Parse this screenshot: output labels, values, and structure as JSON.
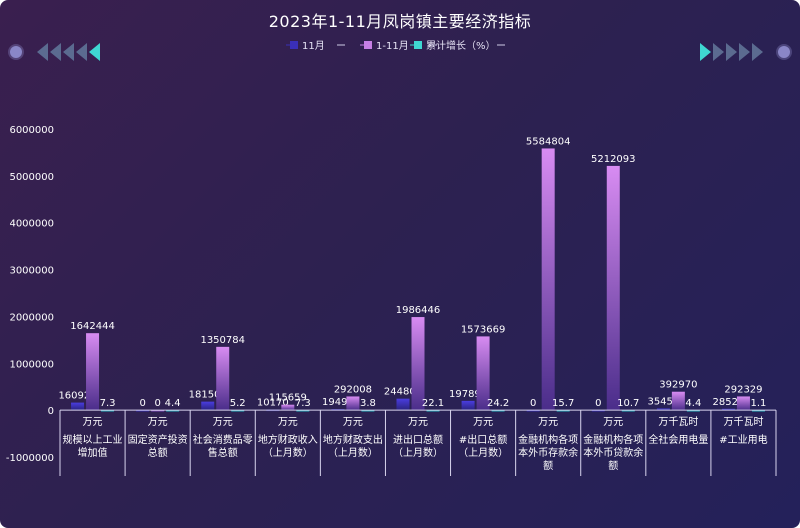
{
  "title": "2023年1-11月凤岗镇主要经济指标",
  "legend": [
    {
      "name": "11月",
      "color": "#3a2fb8"
    },
    {
      "name": "1-11月",
      "color": "#c77fe6"
    },
    {
      "name": "累计增长（%）",
      "color": "#3fd7d2"
    }
  ],
  "chart_data": {
    "type": "bar",
    "title": "2023年1-11月凤岗镇主要经济指标",
    "ylim": [
      -1000000,
      6000000
    ],
    "yticks": [
      -1000000,
      0,
      1000000,
      2000000,
      3000000,
      4000000,
      5000000,
      6000000
    ],
    "ytick_labels": [
      "-1000000",
      "0",
      "1000000",
      "2000000",
      "3000000",
      "4000000",
      "5000000",
      "6000000"
    ],
    "categories": [
      {
        "unit": "万元",
        "lines": [
          "规模以上工业",
          "增加值"
        ]
      },
      {
        "unit": "万元",
        "lines": [
          "固定资产投资",
          "总额"
        ]
      },
      {
        "unit": "万元",
        "lines": [
          "社会消费品零",
          "售总额"
        ]
      },
      {
        "unit": "万元",
        "lines": [
          "地方财政收入",
          "（上月数）"
        ]
      },
      {
        "unit": "万元",
        "lines": [
          "地方财政支出",
          "（上月数）"
        ]
      },
      {
        "unit": "万元",
        "lines": [
          "进出口总额",
          "（上月数）"
        ]
      },
      {
        "unit": "万元",
        "lines": [
          "#出口总额",
          "（上月数）"
        ]
      },
      {
        "unit": "万元",
        "lines": [
          "金融机构各项",
          "本外币存款余",
          "额"
        ]
      },
      {
        "unit": "万元",
        "lines": [
          "金融机构各项",
          "本外币贷款余",
          "额"
        ]
      },
      {
        "unit": "万千瓦时",
        "lines": [
          "全社会用电量"
        ]
      },
      {
        "unit": "万千瓦时",
        "lines": [
          "#工业用电"
        ]
      }
    ],
    "series": [
      {
        "name": "11月",
        "values": [
          160921,
          0,
          181500,
          10170,
          19499,
          244809,
          197897,
          0,
          0,
          35457,
          28528
        ]
      },
      {
        "name": "1-11月",
        "values": [
          1642444,
          0,
          1350784,
          115659,
          292008,
          1986446,
          1573669,
          5584804,
          5212093,
          392970,
          292329
        ]
      },
      {
        "name": "累计增长（%）",
        "values": [
          7.3,
          4.4,
          5.2,
          7.3,
          3.8,
          22.1,
          24.2,
          15.7,
          10.7,
          4.4,
          1.1
        ]
      }
    ],
    "value_labels": [
      [
        "160921",
        "0",
        "181500",
        "10170",
        "19499",
        "244809",
        "197897",
        "0",
        "0",
        "35457",
        "28528"
      ],
      [
        "1642444",
        "0",
        "1350784",
        "115659",
        "292008",
        "1986446",
        "1573669",
        "5584804",
        "5212093",
        "392970",
        "292329"
      ],
      [
        "7.3",
        "4.4",
        "5.2",
        "7.3",
        "3.8",
        "22.1",
        "24.2",
        "15.7",
        "10.7",
        "4.4",
        "1.1"
      ]
    ],
    "legend_position": "top-center",
    "grid": false
  }
}
